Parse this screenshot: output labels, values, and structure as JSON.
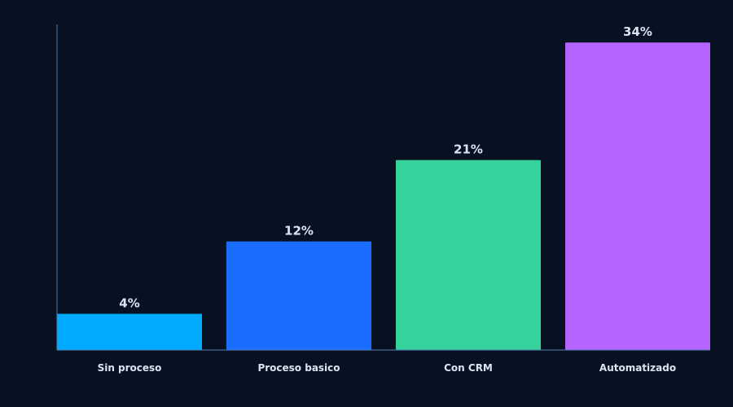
{
  "chart_data": {
    "type": "bar",
    "categories": [
      "Sin proceso",
      "Proceso basico",
      "Con CRM",
      "Automatizado"
    ],
    "values": [
      4,
      12,
      21,
      34
    ],
    "value_labels": [
      "4%",
      "12%",
      "21%",
      "34%"
    ],
    "colors": [
      "#00aaff",
      "#1a6dff",
      "#35d39b",
      "#b565ff"
    ],
    "ylim": [
      0,
      36
    ],
    "grid": false,
    "legend": "none",
    "background": "#081121",
    "axis_color": "#4f7fb8",
    "text_color": "#dbe4f3"
  }
}
